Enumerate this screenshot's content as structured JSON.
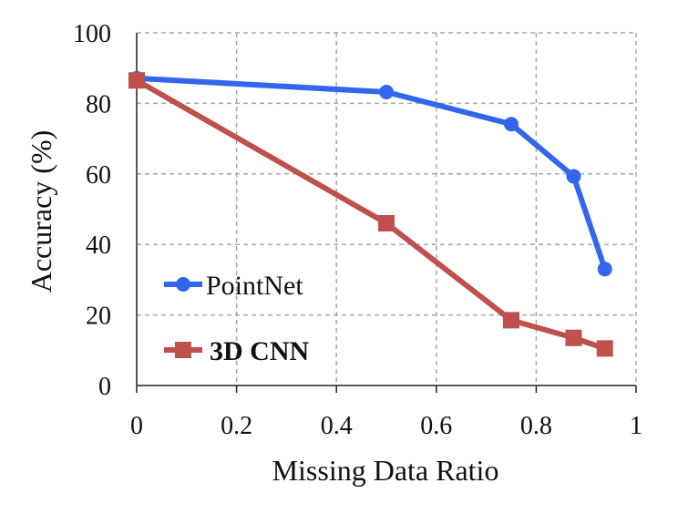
{
  "chart_data": {
    "type": "line",
    "xlabel": "Missing Data Ratio",
    "ylabel": "Accuracy (%)",
    "xlim": [
      0,
      1
    ],
    "ylim": [
      0,
      100
    ],
    "xticks": [
      "0",
      "0.2",
      "0.4",
      "0.6",
      "0.8",
      "1"
    ],
    "yticks": [
      "0",
      "20",
      "40",
      "60",
      "80",
      "100"
    ],
    "grid": true,
    "legend_position": "lower-left",
    "series": [
      {
        "name": "PointNet",
        "color": "#3366ee",
        "marker": "circle",
        "x": [
          0,
          0.5,
          0.75,
          0.875,
          0.9375
        ],
        "y": [
          87.1,
          83.2,
          74.1,
          59.3,
          33.0
        ]
      },
      {
        "name": "3D CNN",
        "color": "#c0504d",
        "marker": "square",
        "x": [
          0,
          0.5,
          0.75,
          0.875,
          0.9375
        ],
        "y": [
          86.5,
          46.0,
          18.5,
          13.5,
          10.5
        ]
      }
    ]
  }
}
